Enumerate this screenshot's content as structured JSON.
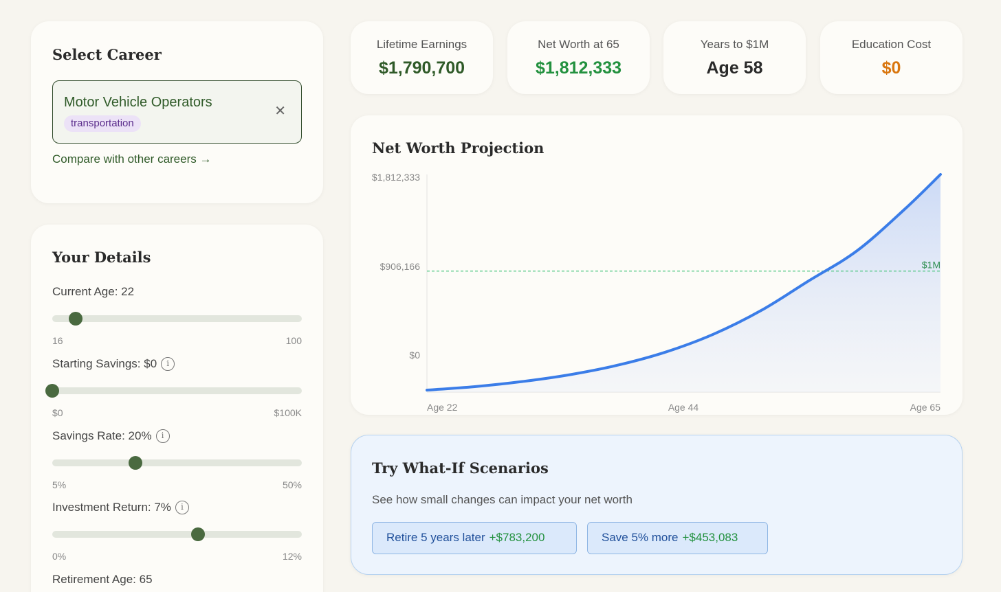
{
  "career": {
    "title": "Select Career",
    "selected": "Motor Vehicle Operators",
    "tag": "transportation",
    "clear": "✕",
    "compare_link": "Compare with other careers →"
  },
  "details": {
    "title": "Your Details",
    "sliders": [
      {
        "label": "Current Age: 22",
        "min_label": "16",
        "max_label": "100",
        "info": false,
        "fraction": 0.095
      },
      {
        "label": "Starting Savings: $0",
        "min_label": "$0",
        "max_label": "$100K",
        "info": true,
        "fraction": 0.0
      },
      {
        "label": "Savings Rate: 20%",
        "min_label": "5%",
        "max_label": "50%",
        "info": true,
        "fraction": 0.333
      },
      {
        "label": "Investment Return: 7%",
        "min_label": "0%",
        "max_label": "12%",
        "info": true,
        "fraction": 0.583
      },
      {
        "label": "Retirement Age: 65"
      }
    ]
  },
  "stats": [
    {
      "label": "Lifetime Earnings",
      "value": "$1,790,700",
      "color": "#2f5a28"
    },
    {
      "label": "Net Worth at 65",
      "value": "$1,812,333",
      "color": "#23913f"
    },
    {
      "label": "Years to $1M",
      "value": "Age 58",
      "color": "#2a2a2a"
    },
    {
      "label": "Education Cost",
      "value": "$0",
      "color": "#d9760f"
    }
  ],
  "chart_data": {
    "type": "area",
    "title": "Net Worth Projection",
    "y_tick_labels": [
      "$1,812,333",
      "$906,166",
      "$0"
    ],
    "x_tick_labels": [
      "Age 22",
      "Age 44",
      "Age 65"
    ],
    "threshold_label": "$1M",
    "threshold_value": 1000000,
    "x": [
      22,
      26,
      30,
      34,
      38,
      42,
      46,
      50,
      54,
      58,
      62,
      65
    ],
    "values": [
      0,
      29000,
      72000,
      130000,
      210000,
      320000,
      470000,
      670000,
      920000,
      1170000,
      1520000,
      1812333
    ],
    "series": [
      {
        "values": [
          0,
          29000,
          72000,
          130000,
          210000,
          320000,
          470000,
          670000,
          920000,
          1170000,
          1520000,
          1812333
        ],
        "color": "#3b7de8"
      }
    ],
    "xlim": [
      22,
      65
    ],
    "ylim": [
      0,
      1812333
    ],
    "grid": false
  },
  "whatif": {
    "title": "Try What-If Scenarios",
    "subtitle": "See how small changes can impact your net worth",
    "scenarios": [
      {
        "label": "Retire 5 years later",
        "delta": "+$783,200"
      },
      {
        "label": "Save 5% more",
        "delta": "+$453,083"
      }
    ]
  }
}
